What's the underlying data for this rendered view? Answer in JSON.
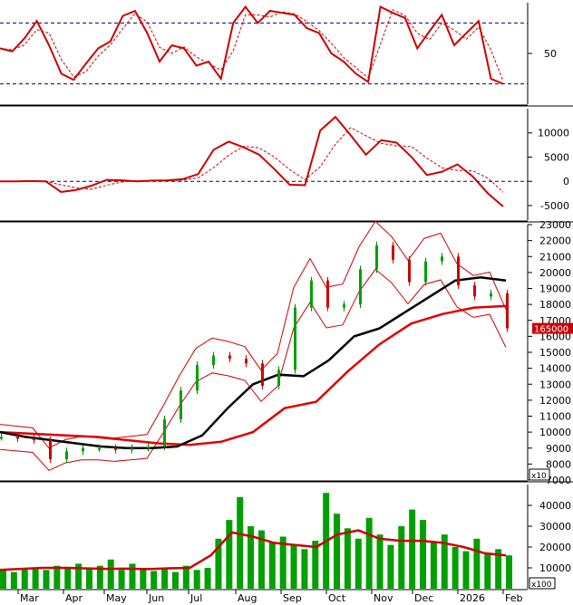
{
  "chart_data": [
    {
      "type": "line",
      "name_hint": "stochastic oscillator panel",
      "ylim": [
        0,
        100
      ],
      "y_ticks": [
        "50"
      ],
      "ref_lines": [
        80,
        20
      ],
      "colors": {
        "main": "#cc0000",
        "signal": "#cc0000",
        "ref": "#000080"
      },
      "series": [
        {
          "values": [
            55,
            52,
            65,
            82,
            58,
            30,
            24,
            40,
            55,
            62,
            87,
            92,
            70,
            42,
            58,
            55,
            38,
            42,
            25,
            80,
            96,
            80,
            92,
            90,
            88,
            75,
            70,
            50,
            42,
            30,
            22,
            96,
            90,
            85,
            55,
            72,
            88,
            58,
            70,
            82,
            25,
            20
          ]
        }
      ]
    },
    {
      "type": "line",
      "name_hint": "MACD panel",
      "ylim": [
        -8000,
        15000
      ],
      "y_ticks": [
        "10000",
        "5000",
        "0",
        "-5000"
      ],
      "series": [
        {
          "values": [
            0,
            0,
            50,
            0,
            -2200,
            -1800,
            -900,
            300,
            200,
            0,
            150,
            200,
            450,
            1500,
            6500,
            8200,
            7000,
            5500,
            2500,
            -700,
            -800,
            10500,
            13300,
            9500,
            5500,
            8500,
            8000,
            5000,
            1300,
            2000,
            3500,
            1000,
            -2500,
            -5200
          ]
        }
      ]
    },
    {
      "type": "line",
      "name_hint": "price candlestick panel",
      "ylim": [
        7000,
        23000
      ],
      "y_ticks": [
        "23000",
        "22000",
        "21000",
        "20000",
        "19000",
        "18000",
        "17000",
        "16000",
        "15000",
        "14000",
        "13000",
        "12000",
        "11000",
        "10000",
        "9000",
        "8000",
        "7000"
      ],
      "axis_unit": "x10",
      "price_label": "165000",
      "price_value": 16500,
      "series": [
        {
          "values": [
            9700,
            9600,
            9500,
            8300,
            8800,
            9000,
            9000,
            8900,
            9000,
            9100,
            10800,
            12600,
            14200,
            14800,
            14600,
            14300,
            12900,
            13900,
            17800,
            19500,
            17800,
            18000,
            20200,
            21700,
            20800,
            19400,
            20700,
            21000,
            19200,
            18500,
            18700,
            16500
          ]
        },
        {
          "values": [
            10000,
            9700,
            9500,
            9300,
            9100,
            9000,
            9000,
            9100,
            9800,
            11500,
            13000,
            13600,
            13500,
            14500,
            16000,
            16500,
            17500,
            18500,
            19500,
            19700,
            19500
          ]
        },
        {
          "values": [
            10000,
            9900,
            9800,
            9700,
            9500,
            9300,
            9200,
            9400,
            10000,
            11500,
            11900,
            13800,
            15500,
            16800,
            17400,
            17800,
            17900
          ]
        }
      ]
    },
    {
      "type": "bar",
      "name_hint": "volume panel",
      "ylim": [
        0,
        50000
      ],
      "y_ticks": [
        "40000",
        "30000",
        "20000",
        "10000"
      ],
      "axis_unit": "x100",
      "x_labels": [
        "Mar",
        "Apr",
        "May",
        "Jun",
        "Jul",
        "Aug",
        "Sep",
        "Oct",
        "Nov",
        "Dec",
        "2026",
        "Feb"
      ],
      "series": [
        {
          "values": [
            9000,
            8000,
            10000,
            9500,
            9000,
            11000,
            10500,
            12000,
            10000,
            11000,
            14000,
            9000,
            12000,
            10000,
            8500,
            9500,
            8000,
            11000,
            9000,
            10000,
            24000,
            33000,
            44000,
            30000,
            28000,
            22000,
            25000,
            21000,
            19000,
            23000,
            46000,
            36000,
            29000,
            24000,
            34000,
            26000,
            21000,
            30000,
            38000,
            33000,
            22000,
            26000,
            20000,
            18000,
            24000,
            17000,
            19000,
            16000
          ]
        },
        {
          "values": [
            9000,
            9500,
            10000,
            10000,
            9800,
            9500,
            9600,
            9400,
            9800,
            10000,
            16000,
            27000,
            25000,
            22000,
            21000,
            20000,
            26000,
            28000,
            24000,
            23000,
            23000,
            22000,
            20000,
            17000,
            16000
          ]
        }
      ]
    }
  ]
}
